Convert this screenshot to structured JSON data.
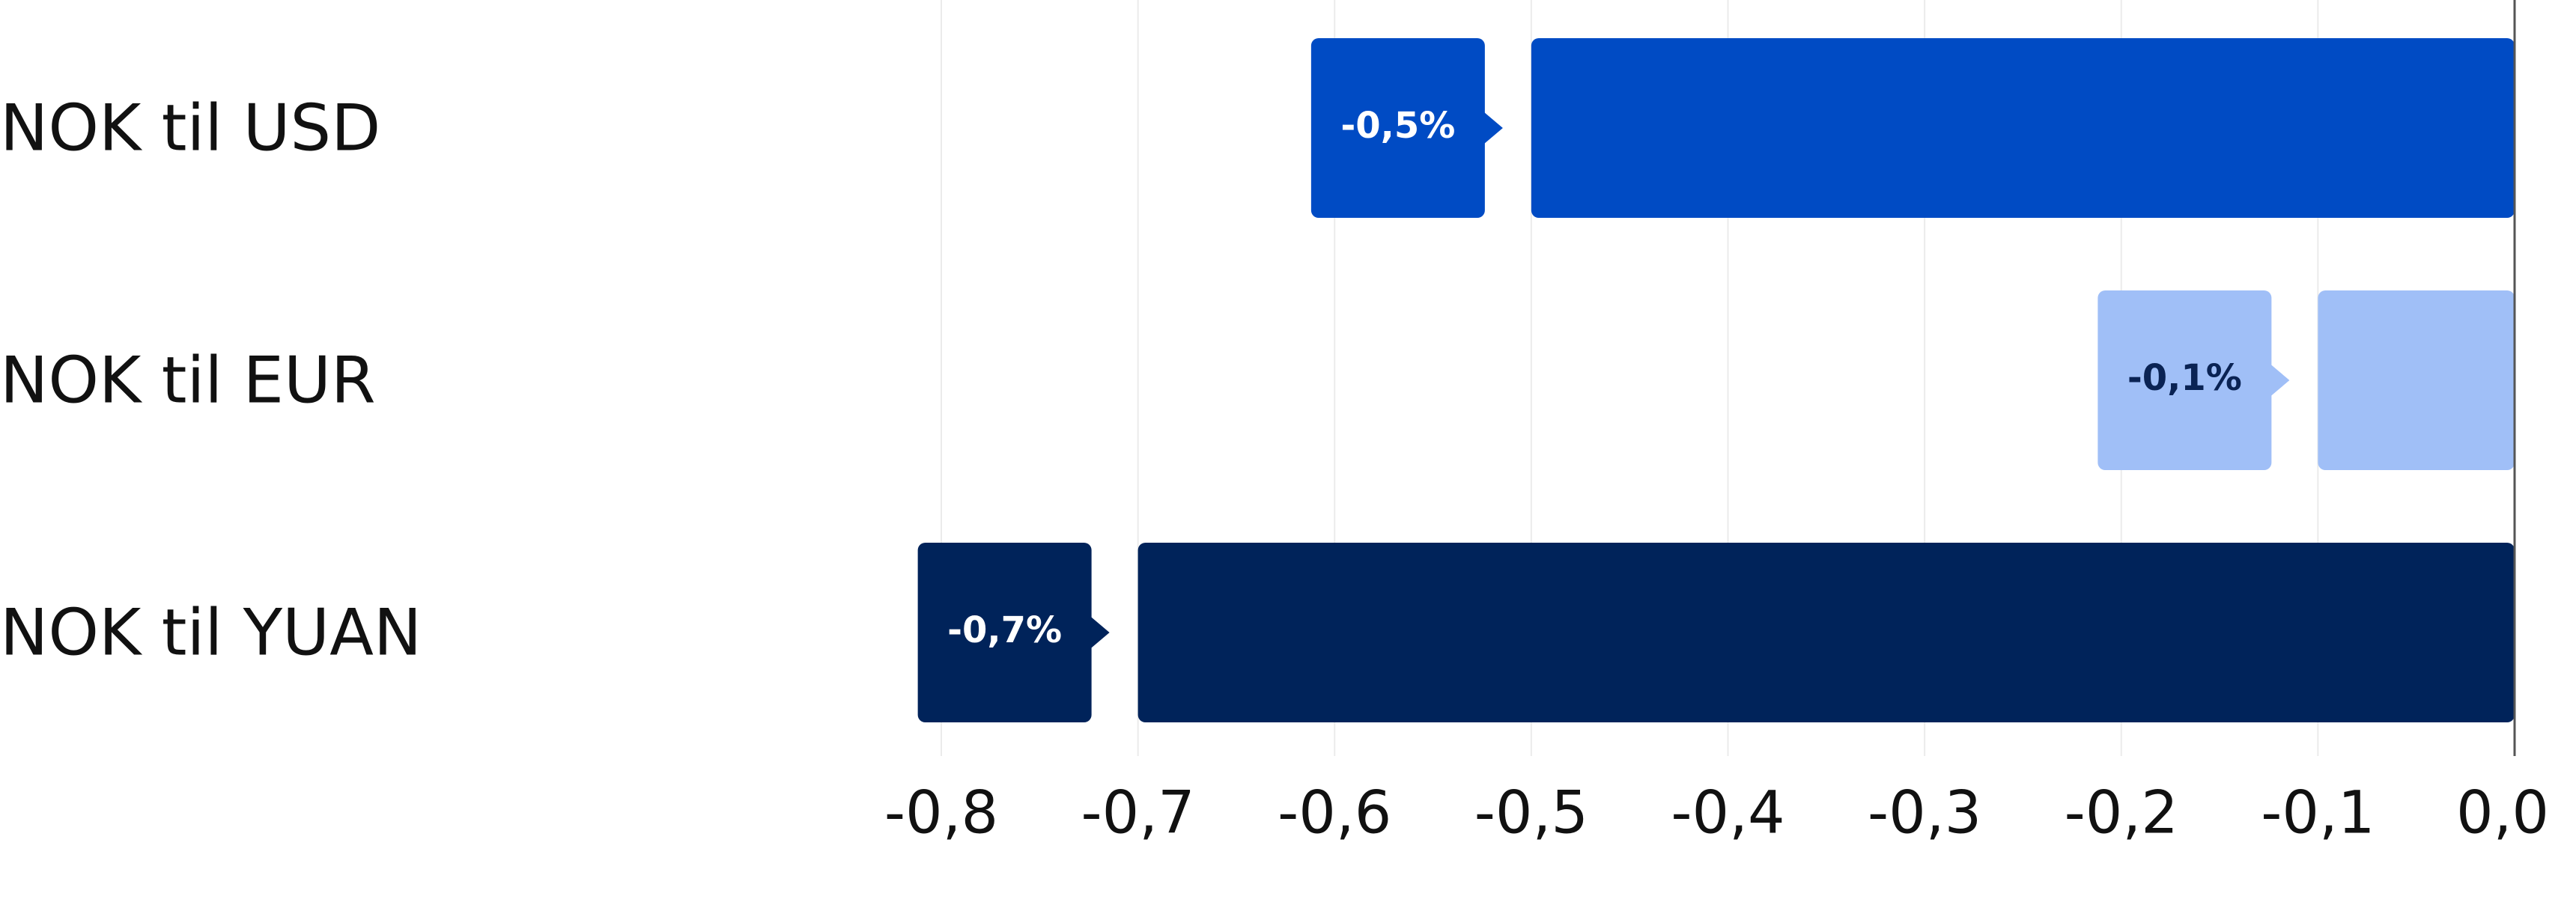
{
  "chart_data": {
    "type": "bar",
    "orientation": "horizontal",
    "categories": [
      "NOK til USD",
      "NOK til EUR",
      "NOK til YUAN"
    ],
    "values": [
      -0.5,
      -0.1,
      -0.7
    ],
    "value_labels": [
      "-0,5%",
      "-0,1%",
      "-0,7%"
    ],
    "colors": [
      "#004bc4",
      "#a0bff7",
      "#00235a"
    ],
    "label_text_colors": [
      "#ffffff",
      "#0a2354",
      "#ffffff"
    ],
    "xlim": [
      -0.8,
      0
    ],
    "xticks": [
      {
        "value": -0.8,
        "label": "-0,8"
      },
      {
        "value": -0.7,
        "label": "-0,7"
      },
      {
        "value": -0.6,
        "label": "-0,6"
      },
      {
        "value": -0.5,
        "label": "-0,5"
      },
      {
        "value": -0.4,
        "label": "-0,4"
      },
      {
        "value": -0.3,
        "label": "-0,3"
      },
      {
        "value": -0.2,
        "label": "-0,2"
      },
      {
        "value": -0.1,
        "label": "-0,1"
      },
      {
        "value": 0,
        "label": "0,0"
      }
    ],
    "grid": true
  }
}
